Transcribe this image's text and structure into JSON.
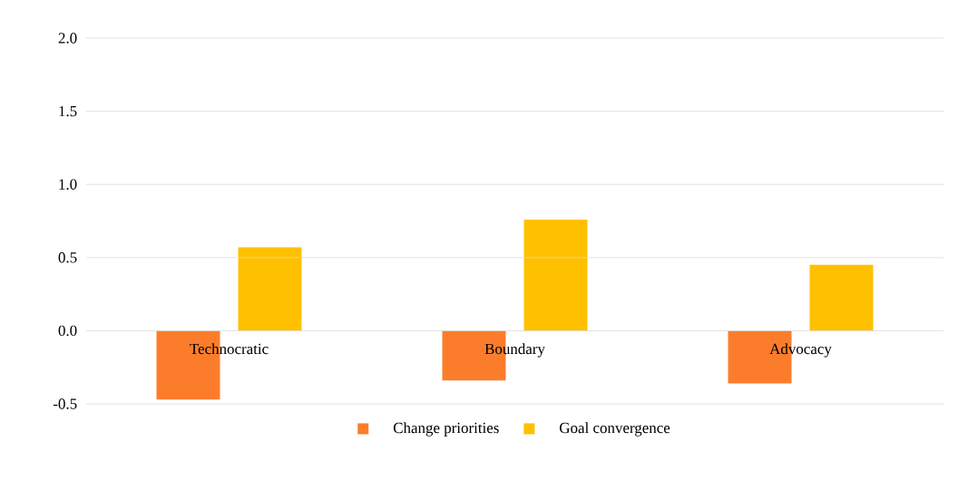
{
  "chart_data": {
    "type": "bar",
    "categories": [
      "Technocratic",
      "Boundary",
      "Advocacy"
    ],
    "series": [
      {
        "name": "Change priorities",
        "color": "#fb7d2c",
        "values": [
          -0.47,
          -0.34,
          -0.36
        ]
      },
      {
        "name": "Goal convergence",
        "color": "#ffc000",
        "values": [
          0.57,
          0.76,
          0.45
        ]
      }
    ],
    "ylim": [
      -0.5,
      2.0
    ],
    "yticks": [
      {
        "value": -0.5,
        "label": "-0.5"
      },
      {
        "value": 0,
        "label": "0.0"
      },
      {
        "value": 0.5,
        "label": "0.5"
      },
      {
        "value": 1.0,
        "label": "1.0"
      },
      {
        "value": 1.5,
        "label": "1.5"
      },
      {
        "value": 2.0,
        "label": "2.0"
      }
    ],
    "grid": "y",
    "legend": "bottom"
  }
}
